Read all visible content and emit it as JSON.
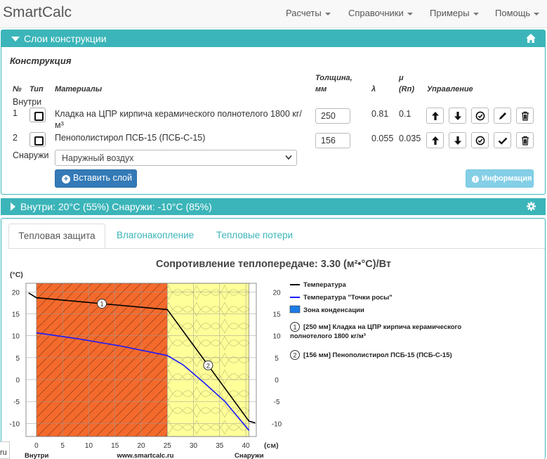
{
  "navbar": {
    "brand": "SmartCalc",
    "menu": [
      "Расчеты",
      "Справочники",
      "Примеры",
      "Помощь"
    ]
  },
  "layers_panel": {
    "title": "Слои конструкции",
    "section_title": "Конструкция",
    "headers": {
      "num": "№",
      "type": "Тип",
      "material": "Материалы",
      "thickness": "Толщина,",
      "thickness_unit": "мм",
      "lambda": "λ",
      "mu": "μ",
      "mu_sub": "(Rп)",
      "control": "Управление"
    },
    "inside_label": "Внутри",
    "outside_label": "Снаружи",
    "layers": [
      {
        "num": "1",
        "material": "Кладка на ЦПР кирпича керамического полнотелого 1800 кг/м³",
        "thickness": "250",
        "lambda": "0.81",
        "mu": "0.1"
      },
      {
        "num": "2",
        "material": "Пенополистирол ПСБ-15 (ПСБ-С-15)",
        "thickness": "156",
        "lambda": "0.055",
        "mu": "0.035"
      }
    ],
    "outside_select": "Наружный воздух",
    "insert_button": "Вставить слой",
    "info_button": "Информация"
  },
  "conditions_panel": {
    "title": "Внутри: 20°C (55%) Снаружи: -10°C (85%)"
  },
  "tabs": [
    "Тепловая защита",
    "Влагонакопление",
    "Тепловые потери"
  ],
  "active_tab": 0,
  "resistance_title": "Сопротивление теплопередаче: 3.30 (м²•°С)/Вт",
  "chart_data": {
    "type": "line",
    "ylabel": "(°C)",
    "xlabel": "(см)",
    "x_ticks": [
      "0",
      "5",
      "10",
      "15",
      "20",
      "25",
      "30",
      "35",
      "40"
    ],
    "y_ticks": [
      "20",
      "15",
      "10",
      "5",
      "0",
      "-5",
      "-10"
    ],
    "xlim": [
      -2,
      42
    ],
    "ylim": [
      -13,
      22
    ],
    "bottom_left_label": "Внутри",
    "bottom_center_label": "www.smartcalc.ru",
    "bottom_right_label": "Снаружи",
    "layers": [
      {
        "marker": "1",
        "from": 0,
        "to": 25,
        "color": "#f46a2c"
      },
      {
        "marker": "2",
        "from": 25,
        "to": 40.6,
        "color": "#ffff99"
      }
    ],
    "series": [
      {
        "name": "Температура",
        "color": "#000000",
        "x": [
          -1.5,
          0,
          25,
          40.6,
          41.8
        ],
        "y": [
          19.8,
          18.7,
          16.0,
          -9.5,
          -9.9
        ]
      },
      {
        "name": "Температура \"Точки росы\"",
        "color": "#1a1aff",
        "x": [
          0,
          8,
          16,
          25,
          28,
          32,
          36,
          40.6
        ],
        "y": [
          10.7,
          9.3,
          7.7,
          5.5,
          3.4,
          -0.7,
          -5.0,
          -11.6
        ]
      }
    ],
    "legend": [
      {
        "label": "Температура",
        "kind": "line",
        "color": "#000000"
      },
      {
        "label": "Температура \"Точки росы\"",
        "kind": "line",
        "color": "#1a1aff"
      },
      {
        "label": "Зона конденсации",
        "kind": "box",
        "color": "#1e7ce6"
      },
      {
        "label": "[250 мм] Кладка на ЦПР кирпича керамического полнотелого 1800 кг/м³",
        "kind": "marker",
        "marker": "1"
      },
      {
        "label": "[156 мм] Пенополистирол ПСБ-15 (ПСБ-С-15)",
        "kind": "marker",
        "marker": "2"
      }
    ]
  },
  "footer_badge": "ru"
}
